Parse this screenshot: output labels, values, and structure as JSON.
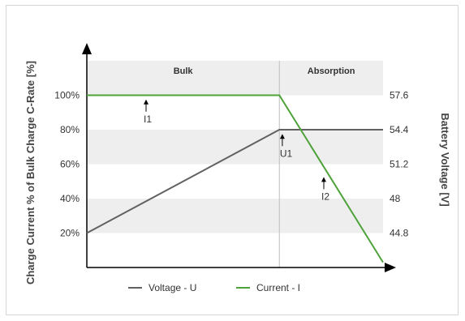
{
  "chart_data": {
    "type": "line",
    "phases": [
      {
        "label": "Bulk",
        "x_start": 0,
        "x_end": 65
      },
      {
        "label": "Absorption",
        "x_start": 65,
        "x_end": 100
      }
    ],
    "left_axis": {
      "label": "Charge Current % of Bulk Charge C-Rate [%]",
      "ticks": [
        {
          "value": 20,
          "label": "20%"
        },
        {
          "value": 40,
          "label": "40%"
        },
        {
          "value": 60,
          "label": "60%"
        },
        {
          "value": 80,
          "label": "80%"
        },
        {
          "value": 100,
          "label": "100%"
        }
      ],
      "ylim": [
        0,
        120
      ]
    },
    "right_axis": {
      "label": "Battery Voltage [V]",
      "ticks": [
        {
          "value": 44.8,
          "label": "44.8"
        },
        {
          "value": 48,
          "label": "48"
        },
        {
          "value": 51.2,
          "label": "51.2"
        },
        {
          "value": 54.4,
          "label": "54.4"
        },
        {
          "value": 57.6,
          "label": "57.6"
        }
      ],
      "ylim": [
        41.6,
        60.8
      ]
    },
    "series": [
      {
        "name": "Voltage - U",
        "axis": "right",
        "color": "#616161",
        "points": [
          [
            0,
            44.8
          ],
          [
            65,
            54.4
          ],
          [
            100,
            54.4
          ]
        ]
      },
      {
        "name": "Current - I",
        "axis": "left",
        "color": "#4ea23a",
        "points": [
          [
            0,
            100
          ],
          [
            65,
            100
          ],
          [
            100,
            3
          ]
        ]
      }
    ],
    "annotations": [
      {
        "label": "I1",
        "x": 20,
        "y": 98,
        "axis": "left"
      },
      {
        "label": "U1",
        "x": 66,
        "y": 78,
        "axis": "left"
      },
      {
        "label": "I2",
        "x": 80,
        "y": 53,
        "axis": "left"
      }
    ],
    "grid": "alternating-bands",
    "legend_position": "bottom"
  }
}
